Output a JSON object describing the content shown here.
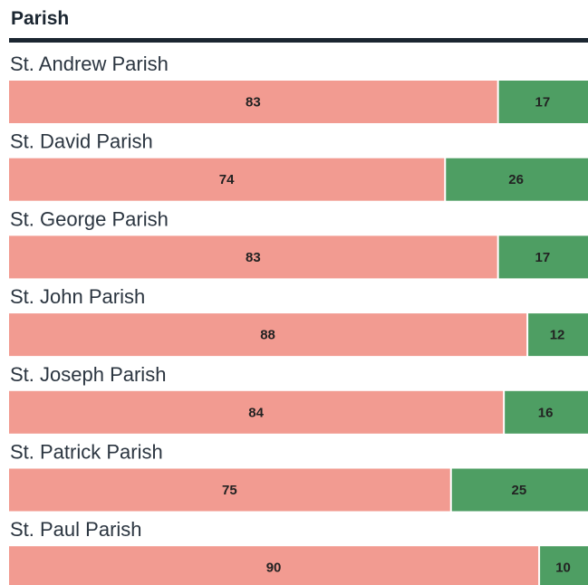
{
  "chart_data": {
    "type": "bar",
    "orientation": "horizontal",
    "stacked": true,
    "title": "Parish",
    "categories": [
      "St. Andrew Parish",
      "St. David Parish",
      "St. George Parish",
      "St. John Parish",
      "St. Joseph Parish",
      "St. Patrick Parish",
      "St. Paul Parish"
    ],
    "series": [
      {
        "color": "#f29b91",
        "values": [
          83,
          74,
          83,
          88,
          84,
          75,
          90
        ]
      },
      {
        "color": "#4e9e63",
        "values": [
          17,
          26,
          17,
          12,
          16,
          25,
          10
        ]
      }
    ],
    "xlim": [
      0,
      100
    ]
  }
}
